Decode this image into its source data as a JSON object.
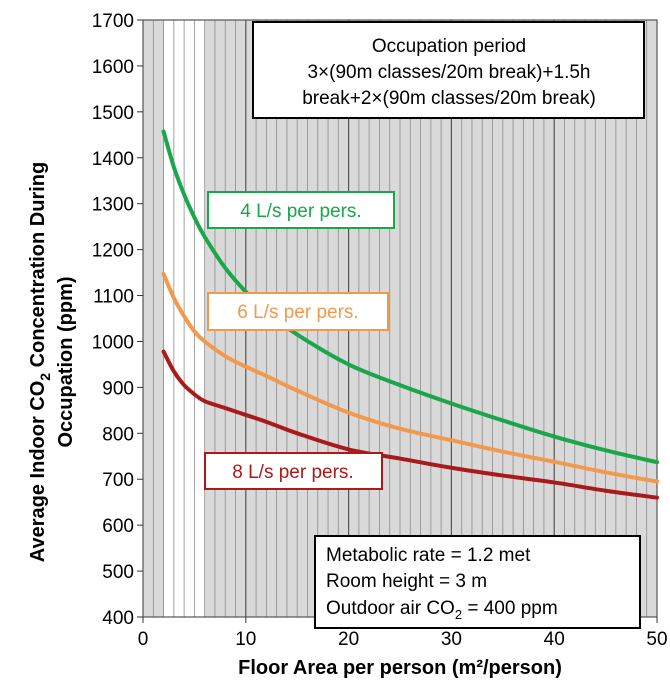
{
  "chart_data": {
    "type": "line",
    "xlabel": "Floor Area per person (m²/person)",
    "ylabel_line1": "Average Indoor CO",
    "ylabel_sub": "2",
    "ylabel_line1_end": " Concentration During",
    "ylabel_line2": "Occupation (ppm)",
    "xlim": [
      0,
      50
    ],
    "ylim": [
      400,
      1700
    ],
    "x_ticks": [
      0,
      10,
      20,
      30,
      40,
      50
    ],
    "y_ticks": [
      400,
      500,
      600,
      700,
      800,
      900,
      1000,
      1100,
      1200,
      1300,
      1400,
      1500,
      1600,
      1700
    ],
    "grid": "vertical lines every 1 m²/person; grey shading for 0–2 and 6–50, white for 2–6",
    "series": [
      {
        "name": "4 L/s per pers.",
        "color": "#1aa64a",
        "x": [
          2,
          3,
          4,
          5,
          6,
          8,
          10,
          12,
          15,
          20,
          25,
          30,
          35,
          40,
          45,
          50
        ],
        "values": [
          1457,
          1380,
          1320,
          1270,
          1228,
          1160,
          1108,
          1065,
          1015,
          950,
          905,
          865,
          828,
          793,
          763,
          737
        ]
      },
      {
        "name": "6 L/s per pers.",
        "color": "#f19a4e",
        "x": [
          2,
          3,
          4,
          5,
          6,
          8,
          10,
          12,
          15,
          20,
          25,
          30,
          35,
          40,
          45,
          50
        ],
        "values": [
          1147,
          1095,
          1055,
          1022,
          1000,
          968,
          945,
          925,
          893,
          845,
          810,
          785,
          760,
          738,
          715,
          695
        ]
      },
      {
        "name": "8 L/s per pers.",
        "color": "#aa1a1a",
        "x": [
          2,
          3,
          4,
          5,
          6,
          8,
          10,
          12,
          15,
          20,
          25,
          30,
          35,
          40,
          45,
          50
        ],
        "values": [
          978,
          935,
          905,
          885,
          870,
          855,
          840,
          825,
          800,
          765,
          745,
          725,
          708,
          693,
          675,
          660
        ]
      }
    ],
    "annotation_top": {
      "line1": "Occupation period",
      "line2": "3×(90m classes/20m break)+1.5h",
      "line3": "break+2×(90m classes/20m break)"
    },
    "annotation_bottom": {
      "line1": "Metabolic rate = 1.2 met",
      "line2": "Room height = 3 m",
      "line3_start": "Outdoor air CO",
      "line3_sub": "2",
      "line3_end": " = 400 ppm"
    }
  }
}
